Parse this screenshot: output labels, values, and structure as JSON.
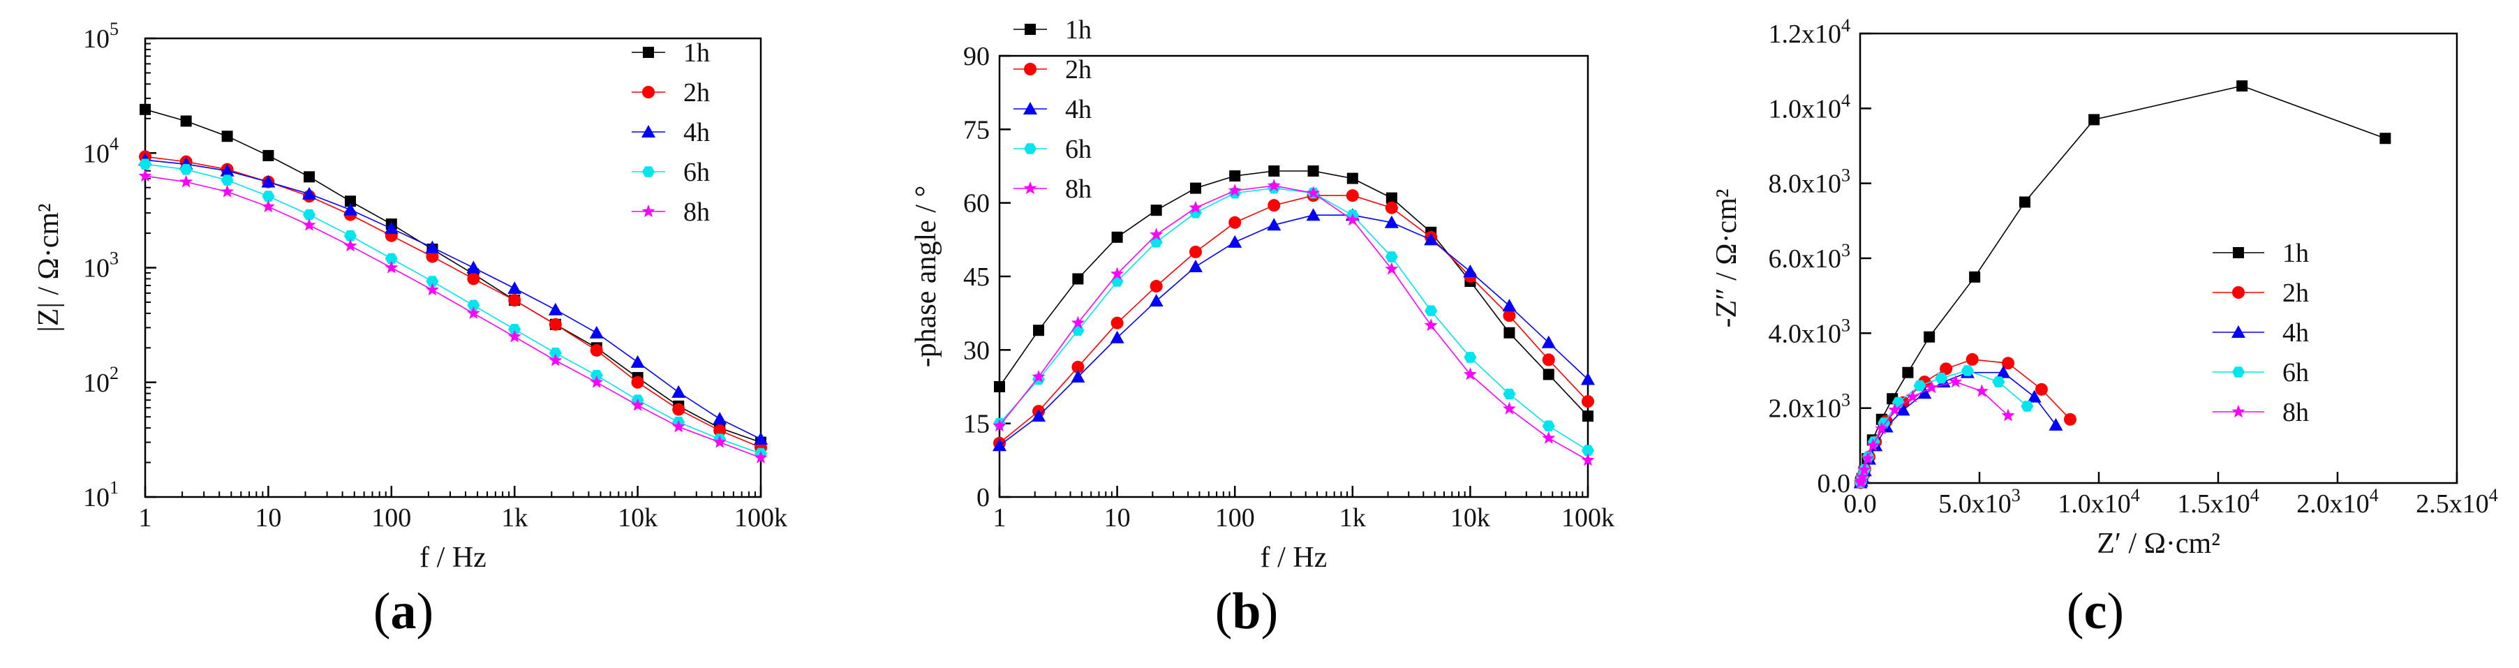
{
  "figure": {
    "panel_labels": [
      {
        "open": "(",
        "letter": "a",
        "close": ")"
      },
      {
        "open": "(",
        "letter": "b",
        "close": ")"
      },
      {
        "open": "(",
        "letter": "c",
        "close": ")"
      }
    ]
  },
  "colors": {
    "1h": "#000000",
    "2h": "#ff0000",
    "4h": "#0000ff",
    "6h": "#00e5ee",
    "8h": "#ff00ff"
  },
  "chart_data": [
    {
      "id": "a",
      "type": "line",
      "title": "",
      "xlabel": "f / Hz",
      "ylabel": "|Z| / Ω·cm²",
      "xscale": "log",
      "yscale": "log",
      "xlim": [
        1,
        100000
      ],
      "ylim": [
        10,
        100000
      ],
      "xticks": [
        {
          "v": 1,
          "label": "1"
        },
        {
          "v": 10,
          "label": "10"
        },
        {
          "v": 100,
          "label": "100"
        },
        {
          "v": 1000,
          "label": "1k"
        },
        {
          "v": 10000,
          "label": "10k"
        },
        {
          "v": 100000,
          "label": "100k"
        }
      ],
      "yticks": [
        {
          "v": 10,
          "base": "10",
          "exp": "1"
        },
        {
          "v": 100,
          "base": "10",
          "exp": "2"
        },
        {
          "v": 1000,
          "base": "10",
          "exp": "3"
        },
        {
          "v": 10000,
          "base": "10",
          "exp": "4"
        },
        {
          "v": 100000,
          "base": "10",
          "exp": "5"
        }
      ],
      "legend": "top-right",
      "x": [
        1,
        2.15,
        4.64,
        10,
        21.5,
        46.4,
        100,
        215,
        464,
        1000,
        2150,
        4640,
        10000,
        21500,
        46400,
        100000
      ],
      "series": [
        {
          "name": "1h",
          "marker": "square",
          "values": [
            24000,
            19000,
            14000,
            9500,
            6200,
            3800,
            2400,
            1450,
            880,
            520,
            320,
            200,
            110,
            62,
            40,
            30
          ]
        },
        {
          "name": "2h",
          "marker": "circle",
          "values": [
            9300,
            8400,
            7200,
            5600,
            4200,
            2900,
            1900,
            1250,
            800,
            520,
            320,
            190,
            100,
            58,
            38,
            27
          ]
        },
        {
          "name": "4h",
          "marker": "triangle",
          "values": [
            8700,
            8000,
            7000,
            5600,
            4400,
            3200,
            2200,
            1500,
            1000,
            660,
            430,
            270,
            150,
            82,
            48,
            32
          ]
        },
        {
          "name": "6h",
          "marker": "hexagon",
          "values": [
            8000,
            7200,
            5800,
            4200,
            2900,
            1900,
            1200,
            760,
            470,
            290,
            180,
            115,
            70,
            45,
            32,
            24
          ]
        },
        {
          "name": "8h",
          "marker": "star",
          "values": [
            6300,
            5600,
            4600,
            3400,
            2350,
            1550,
            1000,
            640,
            400,
            250,
            155,
            100,
            63,
            41,
            30,
            22
          ]
        }
      ]
    },
    {
      "id": "b",
      "type": "line",
      "title": "",
      "xlabel": "f / Hz",
      "ylabel": "-phase angle / °",
      "xscale": "log",
      "yscale": "linear",
      "xlim": [
        1,
        100000
      ],
      "ylim": [
        0,
        90
      ],
      "xticks": [
        {
          "v": 1,
          "label": "1"
        },
        {
          "v": 10,
          "label": "10"
        },
        {
          "v": 100,
          "label": "100"
        },
        {
          "v": 1000,
          "label": "1k"
        },
        {
          "v": 10000,
          "label": "10k"
        },
        {
          "v": 100000,
          "label": "100k"
        }
      ],
      "yticks": [
        {
          "v": 0,
          "label": "0"
        },
        {
          "v": 15,
          "label": "15"
        },
        {
          "v": 30,
          "label": "30"
        },
        {
          "v": 45,
          "label": "45"
        },
        {
          "v": 60,
          "label": "60"
        },
        {
          "v": 75,
          "label": "75"
        },
        {
          "v": 90,
          "label": "90"
        }
      ],
      "legend": "top-left",
      "x": [
        1,
        2.15,
        4.64,
        10,
        21.5,
        46.4,
        100,
        215,
        464,
        1000,
        2150,
        4640,
        10000,
        21500,
        46400,
        100000
      ],
      "series": [
        {
          "name": "1h",
          "marker": "square",
          "values": [
            22.5,
            34,
            44.5,
            53,
            58.5,
            63,
            65.5,
            66.5,
            66.5,
            65,
            61,
            54,
            44,
            33.5,
            25,
            16.5
          ]
        },
        {
          "name": "2h",
          "marker": "circle",
          "values": [
            11,
            17.5,
            26.5,
            35.5,
            43,
            50,
            56,
            59.5,
            61.5,
            61.5,
            59,
            53,
            45,
            37,
            28,
            19.5
          ]
        },
        {
          "name": "4h",
          "marker": "triangle",
          "values": [
            10.5,
            16.5,
            24.5,
            32.5,
            40,
            47,
            52,
            55.5,
            57.5,
            57.5,
            56,
            52.5,
            46,
            39,
            31.5,
            24
          ]
        },
        {
          "name": "6h",
          "marker": "hexagon",
          "values": [
            15,
            24,
            34,
            44,
            52,
            58,
            62,
            63,
            62,
            57.5,
            49,
            38,
            28.5,
            21,
            14.5,
            9.5
          ]
        },
        {
          "name": "8h",
          "marker": "star",
          "values": [
            14.5,
            24.5,
            35.5,
            45.5,
            53.5,
            59,
            62.5,
            63.5,
            62,
            56.5,
            46.5,
            35,
            25,
            18,
            12,
            7.5
          ]
        }
      ]
    },
    {
      "id": "c",
      "type": "scatter",
      "title": "",
      "xlabel": "Z′ / Ω·cm²",
      "ylabel": "-Z″ / Ω·cm²",
      "xscale": "linear",
      "yscale": "linear",
      "xlim": [
        0,
        25000
      ],
      "ylim": [
        0,
        12000
      ],
      "xticks": [
        {
          "v": 0,
          "label": "0.0",
          "exp": ""
        },
        {
          "v": 5000,
          "label": "5.0x10",
          "exp": "3"
        },
        {
          "v": 10000,
          "label": "1.0x10",
          "exp": "4"
        },
        {
          "v": 15000,
          "label": "1.5x10",
          "exp": "4"
        },
        {
          "v": 20000,
          "label": "2.0x10",
          "exp": "4"
        },
        {
          "v": 25000,
          "label": "2.5x10",
          "exp": "4"
        }
      ],
      "yticks": [
        {
          "v": 0,
          "label": "0.0",
          "exp": ""
        },
        {
          "v": 2000,
          "label": "2.0x10",
          "exp": "3"
        },
        {
          "v": 4000,
          "label": "4.0x10",
          "exp": "3"
        },
        {
          "v": 6000,
          "label": "6.0x10",
          "exp": "3"
        },
        {
          "v": 8000,
          "label": "8.0x10",
          "exp": "3"
        },
        {
          "v": 10000,
          "label": "1.0x10",
          "exp": "4"
        },
        {
          "v": 12000,
          "label": "1.2x10",
          "exp": "4"
        }
      ],
      "legend": "center-right",
      "series": [
        {
          "name": "1h",
          "marker": "square",
          "points": [
            [
              20,
              10
            ],
            [
              40,
              40
            ],
            [
              80,
              120
            ],
            [
              160,
              300
            ],
            [
              300,
              650
            ],
            [
              520,
              1150
            ],
            [
              900,
              1700
            ],
            [
              1350,
              2250
            ],
            [
              2000,
              2950
            ],
            [
              2900,
              3900
            ],
            [
              4800,
              5500
            ],
            [
              6900,
              7500
            ],
            [
              9800,
              9700
            ],
            [
              16000,
              10600
            ],
            [
              22000,
              9200
            ]
          ]
        },
        {
          "name": "2h",
          "marker": "circle",
          "points": [
            [
              20,
              10
            ],
            [
              50,
              60
            ],
            [
              100,
              160
            ],
            [
              200,
              370
            ],
            [
              380,
              700
            ],
            [
              650,
              1100
            ],
            [
              1100,
              1650
            ],
            [
              1800,
              2150
            ],
            [
              2700,
              2700
            ],
            [
              3600,
              3050
            ],
            [
              4700,
              3300
            ],
            [
              6200,
              3200
            ],
            [
              7600,
              2500
            ],
            [
              8800,
              1700
            ]
          ]
        },
        {
          "name": "4h",
          "marker": "triangle",
          "points": [
            [
              20,
              10
            ],
            [
              50,
              55
            ],
            [
              100,
              150
            ],
            [
              200,
              330
            ],
            [
              380,
              640
            ],
            [
              650,
              1000
            ],
            [
              1100,
              1500
            ],
            [
              1800,
              1950
            ],
            [
              2700,
              2400
            ],
            [
              3500,
              2700
            ],
            [
              4500,
              2950
            ],
            [
              6000,
              2950
            ],
            [
              7300,
              2300
            ],
            [
              8200,
              1550
            ]
          ]
        },
        {
          "name": "6h",
          "marker": "hexagon",
          "points": [
            [
              20,
              10
            ],
            [
              45,
              60
            ],
            [
              90,
              160
            ],
            [
              180,
              360
            ],
            [
              340,
              700
            ],
            [
              580,
              1100
            ],
            [
              1000,
              1600
            ],
            [
              1600,
              2150
            ],
            [
              2500,
              2600
            ],
            [
              3400,
              2800
            ],
            [
              4500,
              3000
            ],
            [
              5800,
              2700
            ],
            [
              7000,
              2050
            ]
          ]
        },
        {
          "name": "8h",
          "marker": "star",
          "points": [
            [
              20,
              10
            ],
            [
              45,
              60
            ],
            [
              90,
              160
            ],
            [
              170,
              350
            ],
            [
              320,
              650
            ],
            [
              540,
              1000
            ],
            [
              900,
              1450
            ],
            [
              1450,
              1950
            ],
            [
              2200,
              2300
            ],
            [
              3000,
              2550
            ],
            [
              4000,
              2700
            ],
            [
              5100,
              2450
            ],
            [
              6200,
              1800
            ]
          ]
        }
      ]
    }
  ]
}
